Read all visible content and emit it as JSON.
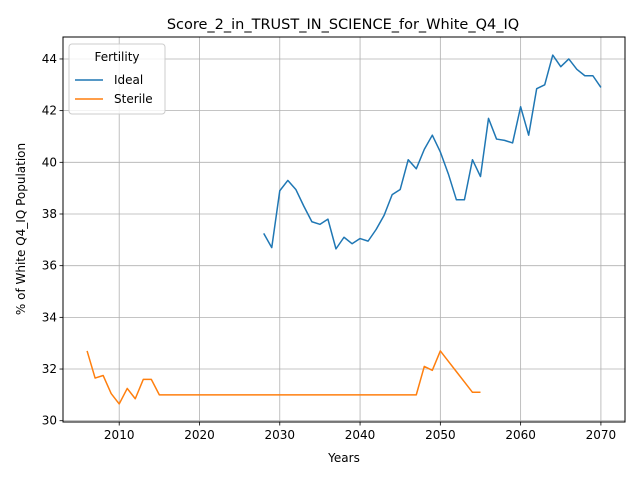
{
  "chart_data": {
    "type": "line",
    "title": "Score_2_in_TRUST_IN_SCIENCE_for_White_Q4_IQ",
    "xlabel": "Years",
    "ylabel": "% of White Q4_IQ Population",
    "xlim": [
      2003,
      2073
    ],
    "ylim": [
      29.95,
      44.85
    ],
    "xticks": [
      2010,
      2020,
      2030,
      2040,
      2050,
      2060,
      2070
    ],
    "yticks": [
      30,
      32,
      34,
      36,
      38,
      40,
      42,
      44
    ],
    "grid": true,
    "legend": {
      "title": "Fertility",
      "placement": "top-left"
    },
    "series": [
      {
        "name": "Ideal",
        "color": "#1f77b4",
        "x": [
          2028,
          2029,
          2030,
          2031,
          2032,
          2033,
          2034,
          2035,
          2036,
          2037,
          2038,
          2039,
          2040,
          2041,
          2042,
          2043,
          2044,
          2045,
          2046,
          2047,
          2048,
          2049,
          2050,
          2051,
          2052,
          2053,
          2054,
          2055,
          2056,
          2057,
          2058,
          2059,
          2060,
          2061,
          2062,
          2063,
          2064,
          2065,
          2066,
          2067,
          2068,
          2069,
          2070
        ],
        "y": [
          37.25,
          36.7,
          38.9,
          39.3,
          38.95,
          38.3,
          37.7,
          37.6,
          37.8,
          36.65,
          37.1,
          36.85,
          37.05,
          36.95,
          37.4,
          37.95,
          38.75,
          38.95,
          40.1,
          39.75,
          40.5,
          41.05,
          40.4,
          39.55,
          38.55,
          38.55,
          40.1,
          39.45,
          41.7,
          40.9,
          40.85,
          40.75,
          42.15,
          41.05,
          42.85,
          43.0,
          44.15,
          43.7,
          44.0,
          43.6,
          43.35,
          43.35,
          42.9
        ]
      },
      {
        "name": "Sterile",
        "color": "#ff7f0e",
        "x": [
          2006,
          2007,
          2008,
          2009,
          2010,
          2011,
          2012,
          2013,
          2014,
          2015,
          2016,
          2017,
          2018,
          2019,
          2020,
          2021,
          2022,
          2023,
          2024,
          2025,
          2026,
          2027,
          2028,
          2029,
          2030,
          2031,
          2032,
          2033,
          2034,
          2035,
          2036,
          2037,
          2038,
          2039,
          2040,
          2041,
          2042,
          2043,
          2044,
          2045,
          2046,
          2047,
          2048,
          2049,
          2050,
          2051,
          2052,
          2053,
          2054,
          2055
        ],
        "y": [
          32.7,
          31.65,
          31.75,
          31.05,
          30.65,
          31.25,
          30.85,
          31.6,
          31.6,
          31.0,
          31.0,
          31.0,
          31.0,
          31.0,
          31.0,
          31.0,
          31.0,
          31.0,
          31.0,
          31.0,
          31.0,
          31.0,
          31.0,
          31.0,
          31.0,
          31.0,
          31.0,
          31.0,
          31.0,
          31.0,
          31.0,
          31.0,
          31.0,
          31.0,
          31.0,
          31.0,
          31.0,
          31.0,
          31.0,
          31.0,
          31.0,
          31.0,
          32.1,
          31.95,
          32.7,
          32.3,
          31.9,
          31.5,
          31.1,
          31.1
        ]
      }
    ]
  }
}
